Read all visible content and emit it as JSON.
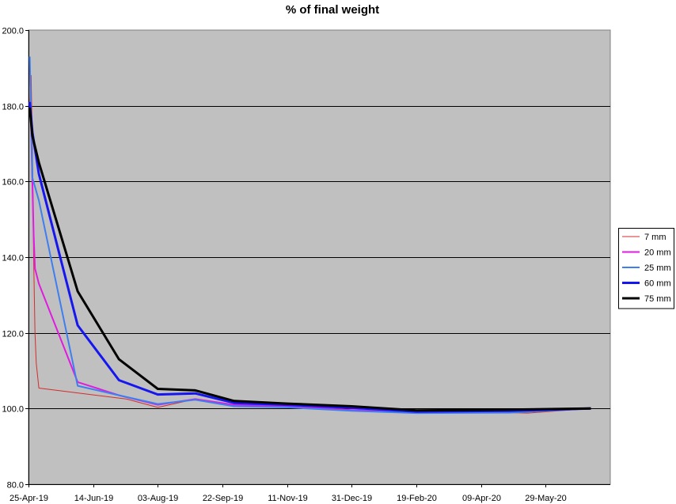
{
  "chart_data": {
    "type": "line",
    "title": "% of final weight",
    "xlabel": "",
    "ylabel": "",
    "x_axis": {
      "type": "date",
      "range": [
        "2019-04-25",
        "2020-07-18"
      ],
      "tick_labels": [
        "25-Apr-19",
        "14-Jun-19",
        "03-Aug-19",
        "22-Sep-19",
        "11-Nov-19",
        "31-Dec-19",
        "19-Feb-20",
        "09-Apr-20",
        "29-May-20"
      ],
      "tick_dates": [
        "2019-04-25",
        "2019-06-14",
        "2019-08-03",
        "2019-09-22",
        "2019-11-11",
        "2019-12-31",
        "2020-02-19",
        "2020-04-09",
        "2020-05-29"
      ]
    },
    "y_axis": {
      "range": [
        80,
        200
      ],
      "tick_values": [
        80,
        100,
        120,
        140,
        160,
        180,
        200
      ],
      "tick_labels": [
        "80.0",
        "100.0",
        "120.0",
        "140.0",
        "160.0",
        "180.0",
        "200.0"
      ]
    },
    "grid": true,
    "plot_background": "#c0c0c0",
    "legend_position": "right",
    "series": [
      {
        "name": "7 mm",
        "color": "#d22d2d",
        "line_width": 1,
        "points": [
          {
            "x": "2019-04-26",
            "y": 180
          },
          {
            "x": "2019-04-27",
            "y": 188
          },
          {
            "x": "2019-04-28",
            "y": 170
          },
          {
            "x": "2019-04-29",
            "y": 140
          },
          {
            "x": "2019-04-30",
            "y": 120
          },
          {
            "x": "2019-05-01",
            "y": 112
          },
          {
            "x": "2019-05-03",
            "y": 105.4
          },
          {
            "x": "2019-06-05",
            "y": 104
          },
          {
            "x": "2019-07-10",
            "y": 102.5
          },
          {
            "x": "2019-08-03",
            "y": 100.3
          },
          {
            "x": "2019-09-01",
            "y": 102.5
          },
          {
            "x": "2019-10-01",
            "y": 101
          },
          {
            "x": "2019-11-11",
            "y": 100.5
          },
          {
            "x": "2019-12-31",
            "y": 100
          },
          {
            "x": "2020-02-19",
            "y": 99.5
          },
          {
            "x": "2020-05-15",
            "y": 98.8
          },
          {
            "x": "2020-07-03",
            "y": 100
          }
        ]
      },
      {
        "name": "20 mm",
        "color": "#e01be0",
        "line_width": 2,
        "points": [
          {
            "x": "2019-04-26",
            "y": 181
          },
          {
            "x": "2019-04-27",
            "y": 174
          },
          {
            "x": "2019-04-28",
            "y": 160
          },
          {
            "x": "2019-04-29",
            "y": 146
          },
          {
            "x": "2019-04-30",
            "y": 137
          },
          {
            "x": "2019-05-03",
            "y": 133
          },
          {
            "x": "2019-06-02",
            "y": 107
          },
          {
            "x": "2019-07-04",
            "y": 103.5
          },
          {
            "x": "2019-08-03",
            "y": 101
          },
          {
            "x": "2019-09-01",
            "y": 102.5
          },
          {
            "x": "2019-10-01",
            "y": 101
          },
          {
            "x": "2019-11-11",
            "y": 100.5
          },
          {
            "x": "2019-12-31",
            "y": 99.6
          },
          {
            "x": "2020-02-19",
            "y": 99
          },
          {
            "x": "2020-05-01",
            "y": 99
          },
          {
            "x": "2020-07-03",
            "y": 100
          }
        ]
      },
      {
        "name": "25 mm",
        "color": "#3d7ef0",
        "line_width": 2,
        "points": [
          {
            "x": "2019-04-26",
            "y": 193
          },
          {
            "x": "2019-04-28",
            "y": 161
          },
          {
            "x": "2019-05-03",
            "y": 155
          },
          {
            "x": "2019-06-02",
            "y": 106
          },
          {
            "x": "2019-07-04",
            "y": 103.5
          },
          {
            "x": "2019-08-03",
            "y": 101.2
          },
          {
            "x": "2019-09-01",
            "y": 102.3
          },
          {
            "x": "2019-10-01",
            "y": 100.6
          },
          {
            "x": "2019-11-11",
            "y": 100.3
          },
          {
            "x": "2019-12-31",
            "y": 99.4
          },
          {
            "x": "2020-02-19",
            "y": 98.8
          },
          {
            "x": "2020-05-01",
            "y": 98.9
          },
          {
            "x": "2020-07-03",
            "y": 100
          }
        ]
      },
      {
        "name": "60 mm",
        "color": "#1616ee",
        "line_width": 3,
        "points": [
          {
            "x": "2019-04-26",
            "y": 181
          },
          {
            "x": "2019-04-28",
            "y": 173
          },
          {
            "x": "2019-05-03",
            "y": 162
          },
          {
            "x": "2019-06-02",
            "y": 122
          },
          {
            "x": "2019-07-04",
            "y": 107.5
          },
          {
            "x": "2019-08-03",
            "y": 103.7
          },
          {
            "x": "2019-09-01",
            "y": 104
          },
          {
            "x": "2019-10-01",
            "y": 101.5
          },
          {
            "x": "2019-11-11",
            "y": 101
          },
          {
            "x": "2019-12-31",
            "y": 100.2
          },
          {
            "x": "2020-02-19",
            "y": 99.2
          },
          {
            "x": "2020-05-01",
            "y": 99.4
          },
          {
            "x": "2020-07-03",
            "y": 100
          }
        ]
      },
      {
        "name": "75 mm",
        "color": "#000000",
        "line_width": 3,
        "points": [
          {
            "x": "2019-04-26",
            "y": 179.5
          },
          {
            "x": "2019-04-28",
            "y": 172
          },
          {
            "x": "2019-05-03",
            "y": 165
          },
          {
            "x": "2019-06-02",
            "y": 131
          },
          {
            "x": "2019-07-04",
            "y": 113
          },
          {
            "x": "2019-08-03",
            "y": 105.2
          },
          {
            "x": "2019-09-01",
            "y": 104.8
          },
          {
            "x": "2019-10-01",
            "y": 102
          },
          {
            "x": "2019-11-11",
            "y": 101.3
          },
          {
            "x": "2019-12-31",
            "y": 100.6
          },
          {
            "x": "2020-02-19",
            "y": 99.5
          },
          {
            "x": "2020-05-01",
            "y": 99.7
          },
          {
            "x": "2020-07-03",
            "y": 100
          }
        ]
      }
    ]
  }
}
